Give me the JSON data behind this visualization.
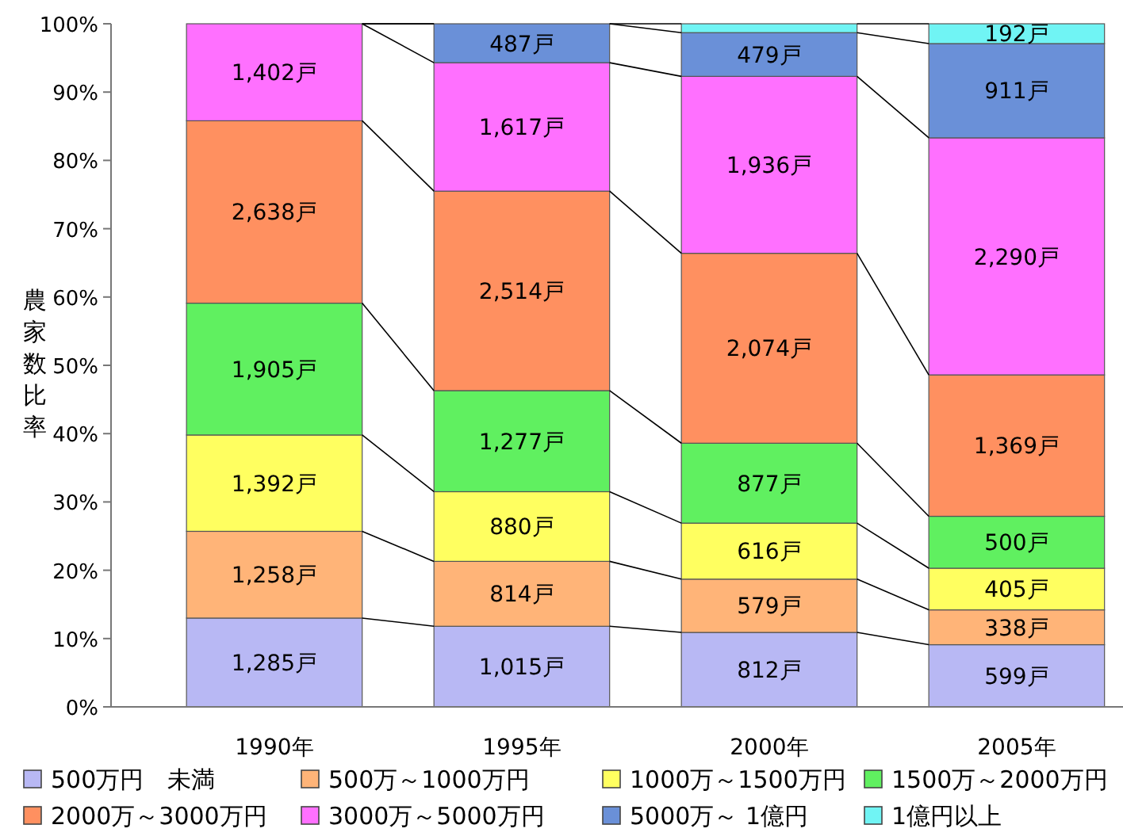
{
  "chart_data": {
    "type": "bar",
    "stacked": true,
    "ylabel": "農家数比率",
    "categories": [
      "1990年",
      "1995年",
      "2000年",
      "2005年"
    ],
    "ylim": [
      0,
      100
    ],
    "yticks": [
      {
        "value": 0,
        "label": "0%"
      },
      {
        "value": 10,
        "label": "10%"
      },
      {
        "value": 20,
        "label": "20%"
      },
      {
        "value": 30,
        "label": "30%"
      },
      {
        "value": 40,
        "label": "40%"
      },
      {
        "value": 50,
        "label": "50%"
      },
      {
        "value": 60,
        "label": "60%"
      },
      {
        "value": 70,
        "label": "70%"
      },
      {
        "value": 80,
        "label": "80%"
      },
      {
        "value": 90,
        "label": "90%"
      },
      {
        "value": 100,
        "label": "100%"
      }
    ],
    "legend": "bottom",
    "series": [
      {
        "name": "500万円　未満",
        "color": "#b8b8f4",
        "values": [
          13.0,
          11.8,
          10.9,
          9.1
        ]
      },
      {
        "name": "500万～1000万円",
        "color": "#ffb478",
        "values": [
          12.7,
          9.5,
          7.8,
          5.1
        ]
      },
      {
        "name": "1000万～1500万円",
        "color": "#ffff60",
        "values": [
          14.1,
          10.2,
          8.2,
          6.1
        ]
      },
      {
        "name": "1500万～2000万円",
        "color": "#60f060",
        "values": [
          19.3,
          14.8,
          11.7,
          7.6
        ]
      },
      {
        "name": "2000万～3000万円",
        "color": "#ff9060",
        "values": [
          26.7,
          29.2,
          27.8,
          20.7
        ]
      },
      {
        "name": "3000万～5000万円",
        "color": "#ff70ff",
        "values": [
          14.2,
          18.8,
          25.9,
          34.7
        ]
      },
      {
        "name": "5000万～ 1億円",
        "color": "#6a90d8",
        "values": [
          null,
          5.7,
          6.4,
          13.8
        ]
      },
      {
        "name": "1億円以上",
        "color": "#70f4f4",
        "values": [
          null,
          null,
          1.3,
          2.9
        ]
      }
    ],
    "annotations": [
      "1,285戸",
      "1,258戸",
      "1,392戸",
      "1,905戸",
      "2,638戸",
      "1,402戸",
      "1,015戸",
      "814戸",
      "880戸",
      "1,277戸",
      "2,514戸",
      "1,617戸",
      "487戸",
      "812戸",
      "579戸",
      "616戸",
      "877戸",
      "2,074戸",
      "1,936戸",
      "479戸",
      "599戸",
      "338戸",
      "405戸",
      "500戸",
      "1,369戸",
      "2,290戸",
      "911戸",
      "192戸"
    ]
  }
}
